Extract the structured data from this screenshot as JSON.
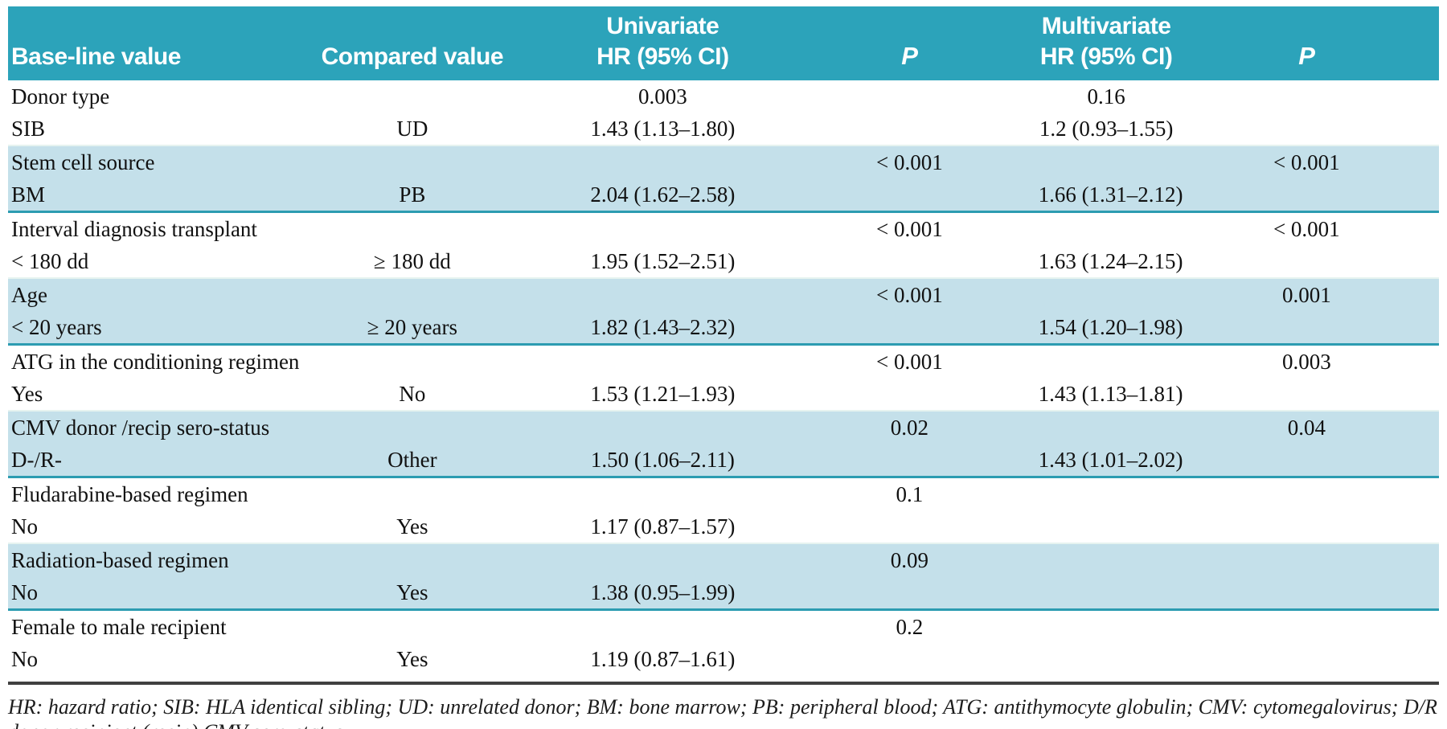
{
  "table": {
    "header": {
      "col1": "Base-line value",
      "col2": "Compared value",
      "col3_line1": "Univariate",
      "col3_line2": "HR (95% CI)",
      "col4": "P",
      "col5_line1": "Multivariate",
      "col5_line2": "HR (95% CI)",
      "col6": "P"
    },
    "groups": [
      {
        "shaded": false,
        "rows": [
          [
            "Donor type",
            "",
            "0.003",
            "",
            "0.16",
            ""
          ],
          [
            "SIB",
            "UD",
            "1.43 (1.13–1.80)",
            "",
            "1.2 (0.93–1.55)",
            ""
          ]
        ]
      },
      {
        "shaded": true,
        "rows": [
          [
            "Stem cell source",
            "",
            "",
            "< 0.001",
            "",
            "< 0.001"
          ],
          [
            "BM",
            "PB",
            "2.04 (1.62–2.58)",
            "",
            "1.66 (1.31–2.12)",
            ""
          ]
        ]
      },
      {
        "shaded": false,
        "rows": [
          [
            "Interval diagnosis transplant",
            "",
            "",
            "< 0.001",
            "",
            "< 0.001"
          ],
          [
            "< 180 dd",
            "≥ 180 dd",
            "1.95 (1.52–2.51)",
            "",
            "1.63 (1.24–2.15)",
            ""
          ]
        ]
      },
      {
        "shaded": true,
        "rows": [
          [
            "Age",
            "",
            "",
            "< 0.001",
            "",
            "0.001"
          ],
          [
            "< 20 years",
            "≥ 20 years",
            "1.82 (1.43–2.32)",
            "",
            "1.54 (1.20–1.98)",
            ""
          ]
        ]
      },
      {
        "shaded": false,
        "rows": [
          [
            "ATG in the conditioning regimen",
            "",
            "",
            "< 0.001",
            "",
            "0.003"
          ],
          [
            "Yes",
            "No",
            "1.53 (1.21–1.93)",
            "",
            "1.43 (1.13–1.81)",
            ""
          ]
        ]
      },
      {
        "shaded": true,
        "rows": [
          [
            "CMV donor /recip sero-status",
            "",
            "",
            "0.02",
            "",
            "0.04"
          ],
          [
            "D-/R-",
            "Other",
            "1.50 (1.06–2.11)",
            "",
            "1.43 (1.01–2.02)",
            ""
          ]
        ]
      },
      {
        "shaded": false,
        "rows": [
          [
            "Fludarabine-based regimen",
            "",
            "",
            "0.1",
            "",
            ""
          ],
          [
            "No",
            "Yes",
            "1.17 (0.87–1.57)",
            "",
            "",
            ""
          ]
        ]
      },
      {
        "shaded": true,
        "rows": [
          [
            "Radiation-based regimen",
            "",
            "",
            "0.09",
            "",
            ""
          ],
          [
            "No",
            "Yes",
            "1.38 (0.95–1.99)",
            "",
            "",
            ""
          ]
        ]
      },
      {
        "shaded": false,
        "rows": [
          [
            "Female to male recipient",
            "",
            "",
            "0.2",
            "",
            ""
          ],
          [
            "No",
            "Yes",
            "1.19 (0.87–1.61)",
            "",
            "",
            ""
          ]
        ]
      }
    ],
    "footnote": "HR: hazard ratio; SIB: HLA identical sibling; UD: unrelated donor; BM: bone marrow; PB: peripheral blood; ATG: antithymocyte globulin; CMV: cytomegalovirus; D/R donor recipient (recip) CMV sero-status."
  },
  "colors": {
    "header_bg": "#2CA3BA",
    "shaded_row": "#C4E0EA",
    "separator_teal": "#2C9CB1",
    "footnote_rule": "#404040",
    "header_text": "#FFFFFF",
    "body_text": "#111111"
  }
}
